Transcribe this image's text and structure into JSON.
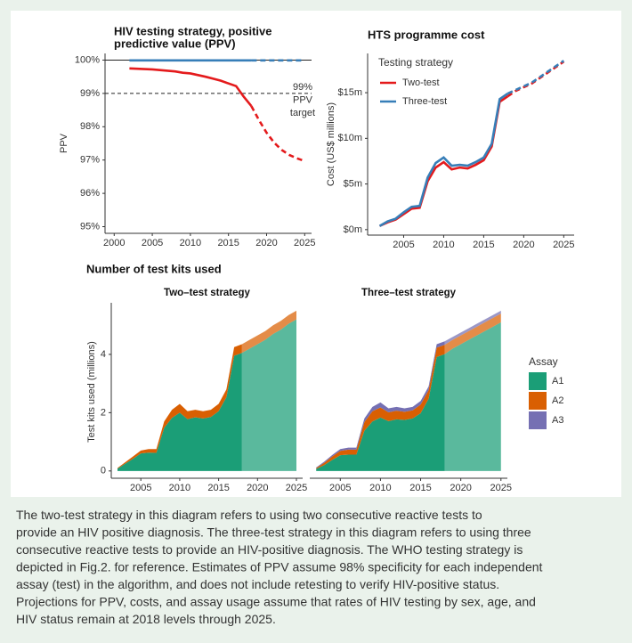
{
  "chart_data": [
    {
      "type": "line",
      "title": [
        "HIV testing strategy, positive",
        "predictive value (PPV)"
      ],
      "ylabel": "PPV",
      "x": [
        2002,
        2003,
        2004,
        2005,
        2006,
        2007,
        2008,
        2009,
        2010,
        2011,
        2012,
        2013,
        2014,
        2015,
        2016,
        2017,
        2018,
        2019,
        2020,
        2021,
        2022,
        2023,
        2024,
        2025
      ],
      "xlim": [
        1998.8,
        2025.9
      ],
      "xticks": [
        2000,
        2005,
        2010,
        2015,
        2020,
        2025
      ],
      "ylim": [
        94.8,
        100.2
      ],
      "yticks": [
        {
          "value": 95,
          "label": "95%"
        },
        {
          "value": 96,
          "label": "96%"
        },
        {
          "value": 97,
          "label": "97%"
        },
        {
          "value": 98,
          "label": "98%"
        },
        {
          "value": 99,
          "label": "99%"
        },
        {
          "value": 100,
          "label": "100%"
        }
      ],
      "dashed_from_x": 2018,
      "reference_lines": [
        {
          "value": 100,
          "style": "solid"
        },
        {
          "value": 99,
          "style": "dashed",
          "label": [
            "99%",
            "PPV",
            "target"
          ]
        }
      ],
      "series": [
        {
          "name": "Two-test",
          "color": "#e41a1c",
          "values": [
            99.75,
            99.74,
            99.73,
            99.72,
            99.7,
            99.68,
            99.66,
            99.62,
            99.6,
            99.55,
            99.5,
            99.44,
            99.38,
            99.3,
            99.22,
            98.9,
            98.62,
            98.2,
            97.82,
            97.52,
            97.3,
            97.15,
            97.05,
            96.97
          ]
        },
        {
          "name": "Three-test",
          "color": "#377eb8",
          "values": [
            99.99,
            99.99,
            99.99,
            99.99,
            99.99,
            99.99,
            99.99,
            99.99,
            99.99,
            99.99,
            99.99,
            99.99,
            99.99,
            99.99,
            99.99,
            99.99,
            99.99,
            99.99,
            99.99,
            99.99,
            99.99,
            99.99,
            99.99,
            99.99
          ]
        }
      ]
    },
    {
      "type": "line",
      "title": [
        "HTS programme cost"
      ],
      "ylabel": "Cost (US$ millions)",
      "legend_title": "Testing strategy",
      "x": [
        2002,
        2003,
        2004,
        2005,
        2006,
        2007,
        2008,
        2009,
        2010,
        2011,
        2012,
        2013,
        2014,
        2015,
        2016,
        2017,
        2018,
        2019,
        2020,
        2021,
        2022,
        2023,
        2024,
        2025
      ],
      "xlim": [
        2000.5,
        2026.3
      ],
      "xticks": [
        2005,
        2010,
        2015,
        2020,
        2025
      ],
      "ylim": [
        -0.6,
        19.3
      ],
      "yticks": [
        {
          "value": 0,
          "label": "$0m"
        },
        {
          "value": 5,
          "label": "$5m"
        },
        {
          "value": 10,
          "label": "$10m"
        },
        {
          "value": 15,
          "label": "$15m"
        }
      ],
      "dashed_from_x": 2018,
      "series": [
        {
          "name": "Two-test",
          "color": "#e41a1c",
          "values": [
            0.4,
            0.8,
            1.1,
            1.7,
            2.3,
            2.4,
            5.3,
            6.8,
            7.4,
            6.6,
            6.8,
            6.7,
            7.1,
            7.6,
            9.1,
            14.0,
            14.6,
            15.2,
            15.6,
            16.0,
            16.6,
            17.2,
            17.8,
            18.4
          ]
        },
        {
          "name": "Three-test",
          "color": "#377eb8",
          "values": [
            0.4,
            0.9,
            1.2,
            1.9,
            2.5,
            2.6,
            5.7,
            7.3,
            7.9,
            7.0,
            7.1,
            7.0,
            7.4,
            7.9,
            9.4,
            14.3,
            14.9,
            15.3,
            15.7,
            16.1,
            16.7,
            17.3,
            17.9,
            18.5
          ]
        }
      ]
    },
    {
      "type": "stacked_area",
      "title": [
        "Number of test kits used"
      ],
      "ylabel": "Test kits used (millions)",
      "legend_title": "Assay",
      "assays": [
        {
          "name": "A1",
          "color": "#1b9e77"
        },
        {
          "name": "A2",
          "color": "#d95f02"
        },
        {
          "name": "A3",
          "color": "#7570b3"
        }
      ],
      "x": [
        2002,
        2003,
        2004,
        2005,
        2006,
        2007,
        2008,
        2009,
        2010,
        2011,
        2012,
        2013,
        2014,
        2015,
        2016,
        2017,
        2018,
        2019,
        2020,
        2021,
        2022,
        2023,
        2024,
        2025
      ],
      "xlim": [
        2001.2,
        2025.8
      ],
      "xticks": [
        2005,
        2010,
        2015,
        2020,
        2025
      ],
      "ylim": [
        -0.25,
        5.77
      ],
      "yticks": [
        0,
        2,
        4
      ],
      "light_from_x": 2018,
      "panels": [
        {
          "subtitle": "Two–test strategy",
          "stacks": [
            [
              0.08,
              0.25,
              0.42,
              0.6,
              0.63,
              0.62,
              1.48,
              1.82,
              2.0,
              1.78,
              1.84,
              1.8,
              1.85,
              2.05,
              2.53,
              3.95,
              4.05,
              4.2,
              4.35,
              4.5,
              4.7,
              4.85,
              5.05,
              5.2
            ],
            [
              0.02,
              0.05,
              0.08,
              0.1,
              0.12,
              0.13,
              0.22,
              0.28,
              0.3,
              0.27,
              0.26,
              0.25,
              0.25,
              0.25,
              0.27,
              0.3,
              0.3,
              0.3,
              0.3,
              0.3,
              0.3,
              0.3,
              0.3,
              0.3
            ]
          ]
        },
        {
          "subtitle": "Three–test strategy",
          "stacks": [
            [
              0.07,
              0.2,
              0.38,
              0.54,
              0.56,
              0.56,
              1.38,
              1.7,
              1.83,
              1.71,
              1.77,
              1.75,
              1.8,
              1.98,
              2.48,
              3.91,
              4.01,
              4.2,
              4.35,
              4.5,
              4.65,
              4.8,
              4.95,
              5.1
            ],
            [
              0.03,
              0.08,
              0.12,
              0.15,
              0.17,
              0.17,
              0.3,
              0.35,
              0.35,
              0.3,
              0.3,
              0.28,
              0.28,
              0.3,
              0.3,
              0.32,
              0.32,
              0.3,
              0.3,
              0.3,
              0.3,
              0.3,
              0.3,
              0.3
            ],
            [
              0.02,
              0.04,
              0.05,
              0.06,
              0.07,
              0.07,
              0.12,
              0.15,
              0.17,
              0.14,
              0.13,
              0.12,
              0.12,
              0.12,
              0.12,
              0.12,
              0.12,
              0.1,
              0.1,
              0.1,
              0.1,
              0.1,
              0.1,
              0.1
            ]
          ]
        }
      ]
    }
  ],
  "caption": [
    "The two-test strategy in this diagram refers to using two consecutive reactive tests to",
    "provide an HIV positive diagnosis. The three-test strategy in this diagram refers to using three",
    "consecutive reactive tests to provide an HIV-positive diagnosis. The WHO testing strategy is",
    "depicted in Fig.2. for reference. Estimates of PPV assume 98% specificity for each independent",
    "assay (test) in the algorithm, and does not include retesting to verify HIV-positive status.",
    "Projections for PPV, costs, and assay usage assume that rates of HIV testing by sex, age, and",
    "HIV status remain at 2018 levels through 2025."
  ]
}
